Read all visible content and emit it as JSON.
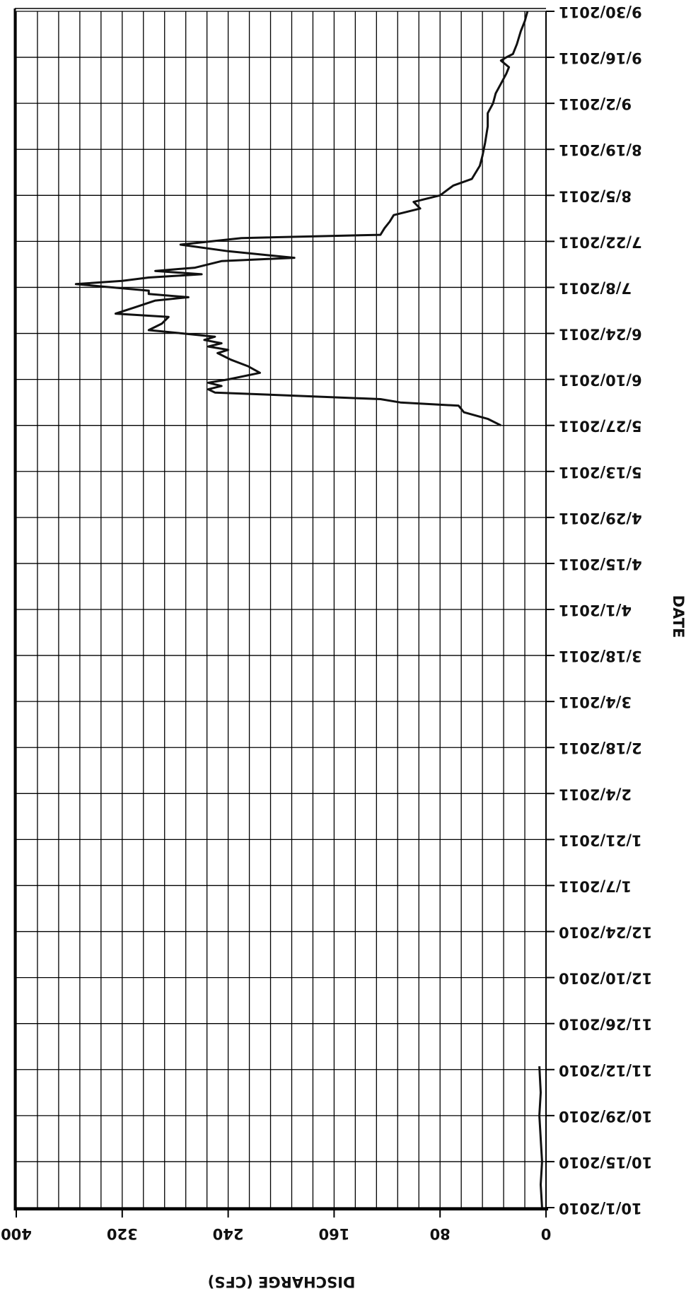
{
  "chart_data": {
    "type": "line",
    "xlabel": "DATE",
    "ylabel": "DISCHARGE (CFS)",
    "x": [
      "10/1/2010",
      "10/8/2010",
      "10/15/2010",
      "10/22/2010",
      "10/29/2010",
      "11/5/2010",
      "11/13/2010",
      null,
      "5/27/2011",
      "5/29/2011",
      "5/31/2011",
      "6/2/2011",
      "6/3/2011",
      "6/4/2011",
      "6/6/2011",
      "6/7/2011",
      "6/8/2011",
      "6/9/2011",
      "6/10/2011",
      "6/12/2011",
      "6/14/2011",
      "6/16/2011",
      "6/18/2011",
      "6/19/2011",
      "6/20/2011",
      "6/21/2011",
      "6/22/2011",
      "6/23/2011",
      "6/24/2011",
      "6/25/2011",
      "6/27/2011",
      "6/29/2011",
      "6/30/2011",
      "7/2/2011",
      "7/4/2011",
      "7/5/2011",
      "7/6/2011",
      "7/7/2011",
      "7/9/2011",
      "7/10/2011",
      "7/11/2011",
      "7/12/2011",
      "7/13/2011",
      "7/14/2011",
      "7/16/2011",
      "7/17/2011",
      "7/19/2011",
      "7/21/2011",
      "7/23/2011",
      "7/24/2011",
      "7/26/2011",
      "7/28/2011",
      "7/30/2011",
      "8/1/2011",
      "8/3/2011",
      "8/5/2011",
      "8/8/2011",
      "8/10/2011",
      "8/14/2011",
      "8/17/2011",
      "8/21/2011",
      "8/26/2011",
      "8/30/2011",
      "9/2/2011",
      "9/5/2011",
      "9/8/2011",
      "9/11/2011",
      "9/13/2011",
      "9/15/2011",
      "9/16/2011",
      "9/17/2011",
      "9/20/2011",
      "9/24/2011",
      "9/27/2011",
      "9/30/2011"
    ],
    "values": [
      3,
      4,
      3,
      4,
      5,
      4,
      5,
      null,
      34,
      44,
      62,
      66,
      110,
      125,
      250,
      255,
      245,
      255,
      240,
      216,
      225,
      238,
      248,
      240,
      255,
      245,
      258,
      250,
      275,
      300,
      290,
      285,
      325,
      310,
      295,
      270,
      300,
      300,
      355,
      320,
      300,
      260,
      295,
      265,
      245,
      190,
      240,
      276,
      230,
      125,
      122,
      118,
      115,
      95,
      100,
      80,
      70,
      56,
      50,
      48,
      46,
      44,
      44,
      40,
      38,
      34,
      30,
      28,
      34,
      30,
      25,
      22,
      19,
      16,
      14
    ],
    "color": "#111111",
    "xlim": [
      "10/1/2010",
      "9/30/2011"
    ],
    "xticks": [
      "10/1/2010",
      "10/15/2010",
      "10/29/2010",
      "11/12/2010",
      "11/26/2010",
      "12/10/2010",
      "12/24/2010",
      "1/7/2011",
      "1/21/2011",
      "2/4/2011",
      "2/18/2011",
      "3/4/2011",
      "3/18/2011",
      "4/1/2011",
      "4/15/2011",
      "4/29/2011",
      "5/13/2011",
      "5/27/2011",
      "6/10/2011",
      "6/24/2011",
      "7/8/2011",
      "7/22/2011",
      "8/5/2011",
      "8/19/2011",
      "9/2/2011",
      "9/16/2011",
      "9/30/2011"
    ],
    "ylim": [
      0,
      400
    ],
    "yticks": [
      0,
      80,
      160,
      240,
      320,
      400
    ],
    "ygrid": [
      0,
      16,
      32,
      48,
      64,
      80,
      96,
      112,
      128,
      144,
      160,
      176,
      192,
      208,
      224,
      240,
      256,
      272,
      288,
      304,
      320,
      336,
      352,
      368,
      384,
      400
    ],
    "grid": true
  }
}
